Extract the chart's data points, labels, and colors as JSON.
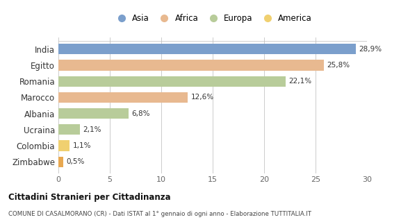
{
  "categories": [
    "India",
    "Egitto",
    "Romania",
    "Marocco",
    "Albania",
    "Ucraina",
    "Colombia",
    "Zimbabwe"
  ],
  "values": [
    28.9,
    25.8,
    22.1,
    12.6,
    6.8,
    2.1,
    1.1,
    0.5
  ],
  "labels": [
    "28,9%",
    "25,8%",
    "22,1%",
    "12,6%",
    "6,8%",
    "2,1%",
    "1,1%",
    "0,5%"
  ],
  "colors": [
    "#7b9fcc",
    "#e8b990",
    "#b8cc9a",
    "#e8b990",
    "#b8cc9a",
    "#b8cc9a",
    "#f0d070",
    "#e8a850"
  ],
  "legend_labels": [
    "Asia",
    "Africa",
    "Europa",
    "America"
  ],
  "legend_colors": [
    "#7b9fcc",
    "#e8b990",
    "#b8cc9a",
    "#f0d070"
  ],
  "xlim": [
    0,
    30
  ],
  "xticks": [
    0,
    5,
    10,
    15,
    20,
    25,
    30
  ],
  "title_bold": "Cittadini Stranieri per Cittadinanza",
  "subtitle": "COMUNE DI CASALMORANO (CR) - Dati ISTAT al 1° gennaio di ogni anno - Elaborazione TUTTITALIA.IT",
  "background_color": "#ffffff"
}
